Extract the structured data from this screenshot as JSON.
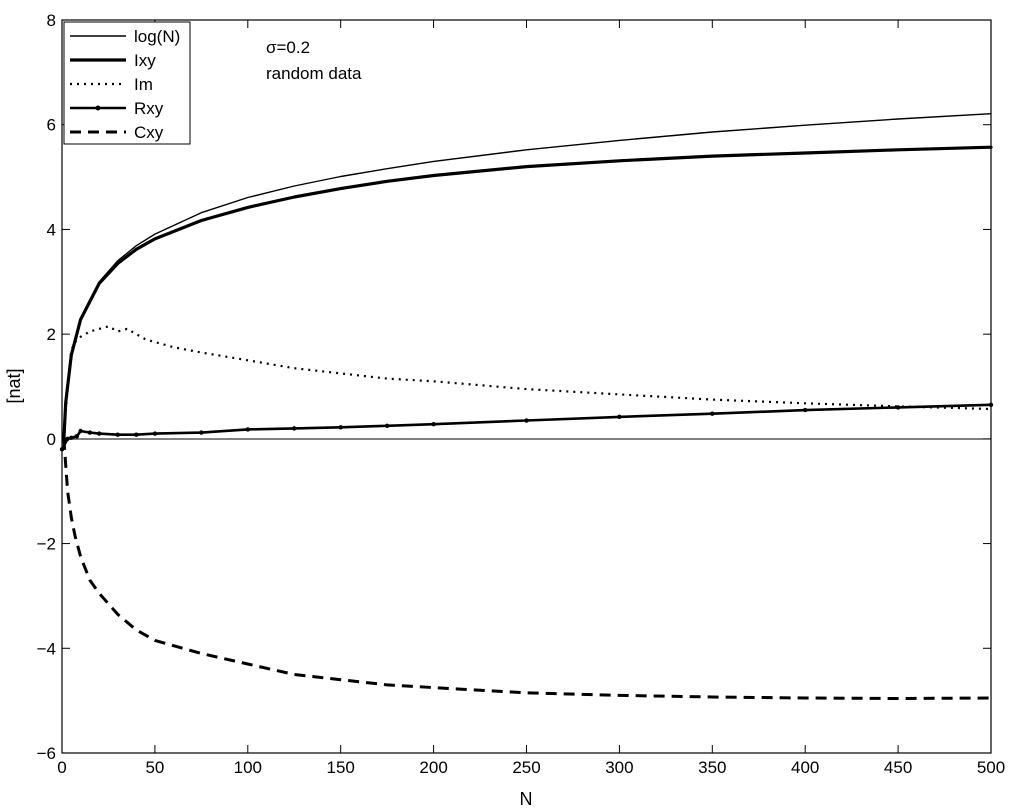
{
  "chart_data": {
    "type": "line",
    "title": "",
    "xlabel": "N",
    "ylabel": "[nat]",
    "xlim": [
      0,
      500
    ],
    "ylim": [
      -6,
      8
    ],
    "xticks": [
      0,
      50,
      100,
      150,
      200,
      250,
      300,
      350,
      400,
      450,
      500
    ],
    "yticks": [
      -6,
      -4,
      -2,
      0,
      2,
      4,
      6,
      8
    ],
    "grid": false,
    "legend_position": "top-left",
    "annotations": [
      "σ=0.2",
      "random data"
    ],
    "zero_line": true,
    "series": [
      {
        "name": "log(N)",
        "style": "thin-solid",
        "x": [
          1,
          2,
          5,
          10,
          20,
          30,
          40,
          50,
          75,
          100,
          125,
          150,
          175,
          200,
          250,
          300,
          350,
          400,
          450,
          500
        ],
        "y": [
          0.0,
          0.69,
          1.61,
          2.3,
          3.0,
          3.4,
          3.69,
          3.91,
          4.32,
          4.61,
          4.83,
          5.01,
          5.16,
          5.3,
          5.52,
          5.7,
          5.86,
          5.99,
          6.11,
          6.21
        ]
      },
      {
        "name": "Ixy",
        "style": "thick-solid",
        "x": [
          1,
          2,
          5,
          10,
          20,
          30,
          40,
          50,
          75,
          100,
          125,
          150,
          175,
          200,
          250,
          300,
          350,
          400,
          450,
          500
        ],
        "y": [
          0.0,
          0.69,
          1.6,
          2.28,
          2.97,
          3.35,
          3.62,
          3.82,
          4.17,
          4.42,
          4.62,
          4.78,
          4.92,
          5.03,
          5.2,
          5.31,
          5.4,
          5.46,
          5.52,
          5.57
        ]
      },
      {
        "name": "Im",
        "style": "dotted",
        "x": [
          1,
          3,
          5,
          8,
          10,
          15,
          20,
          25,
          30,
          35,
          40,
          45,
          50,
          60,
          75,
          100,
          125,
          150,
          175,
          200,
          250,
          300,
          350,
          400,
          450,
          500
        ],
        "y": [
          0.0,
          1.0,
          1.7,
          1.9,
          1.95,
          2.05,
          2.1,
          2.15,
          2.05,
          2.1,
          2.0,
          1.9,
          1.85,
          1.75,
          1.65,
          1.5,
          1.35,
          1.25,
          1.15,
          1.1,
          0.95,
          0.85,
          0.75,
          0.68,
          0.62,
          0.57
        ]
      },
      {
        "name": "Rxy",
        "style": "solid-with-points",
        "x": [
          0,
          3,
          5,
          8,
          10,
          15,
          20,
          30,
          40,
          50,
          75,
          100,
          125,
          150,
          175,
          200,
          250,
          300,
          350,
          400,
          450,
          500
        ],
        "y": [
          -0.2,
          0.0,
          0.02,
          0.05,
          0.15,
          0.12,
          0.1,
          0.08,
          0.08,
          0.1,
          0.12,
          0.18,
          0.2,
          0.22,
          0.25,
          0.28,
          0.35,
          0.42,
          0.48,
          0.55,
          0.6,
          0.65
        ]
      },
      {
        "name": "Cxy",
        "style": "dashed",
        "x": [
          1,
          2,
          3,
          5,
          7,
          10,
          15,
          20,
          25,
          30,
          40,
          50,
          60,
          75,
          100,
          125,
          150,
          175,
          200,
          250,
          300,
          350,
          400,
          450,
          500
        ],
        "y": [
          0.0,
          -0.5,
          -1.0,
          -1.5,
          -1.85,
          -2.25,
          -2.7,
          -2.95,
          -3.15,
          -3.35,
          -3.65,
          -3.85,
          -3.95,
          -4.1,
          -4.3,
          -4.5,
          -4.6,
          -4.7,
          -4.75,
          -4.85,
          -4.9,
          -4.93,
          -4.95,
          -4.96,
          -4.95
        ]
      }
    ]
  }
}
